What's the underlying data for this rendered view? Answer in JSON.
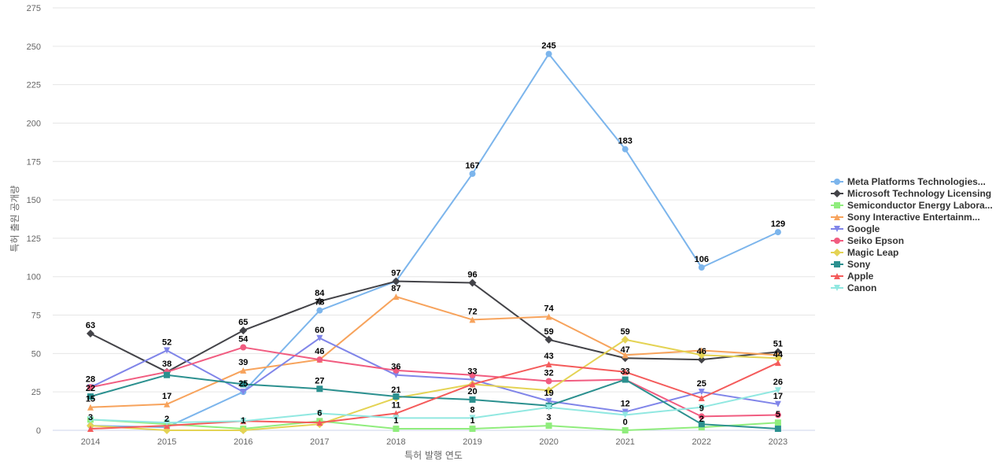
{
  "chart_data": {
    "type": "line",
    "xlabel": "특허 발행 연도",
    "ylabel": "특허 출원 공개량",
    "ylim": [
      0,
      275
    ],
    "yticks": [
      0,
      25,
      50,
      75,
      100,
      125,
      150,
      175,
      200,
      225,
      250,
      275
    ],
    "grid": true,
    "legend_position": "right",
    "categories": [
      "2014",
      "2015",
      "2016",
      "2017",
      "2018",
      "2019",
      "2020",
      "2021",
      "2022",
      "2023"
    ],
    "series": [
      {
        "name": "Meta Platforms Technologies...",
        "color": "#7cb5ec",
        "marker": "circle",
        "values": [
          3,
          2,
          25,
          78,
          97,
          167,
          245,
          183,
          106,
          129
        ]
      },
      {
        "name": "Microsoft Technology Licensing",
        "color": "#434348",
        "marker": "diamond",
        "values": [
          63,
          38,
          65,
          84,
          97,
          96,
          59,
          47,
          46,
          51
        ]
      },
      {
        "name": "Semiconductor Energy Labora...",
        "color": "#90ed7d",
        "marker": "square",
        "values": [
          7,
          4,
          1,
          6,
          1,
          1,
          3,
          0,
          2,
          5
        ]
      },
      {
        "name": "Sony Interactive Entertainm...",
        "color": "#f7a35c",
        "marker": "triangle",
        "values": [
          15,
          17,
          39,
          46,
          87,
          72,
          74,
          49,
          52,
          49
        ]
      },
      {
        "name": "Google",
        "color": "#8085e9",
        "marker": "triangle-down",
        "values": [
          28,
          52,
          25,
          60,
          36,
          33,
          19,
          12,
          25,
          17
        ]
      },
      {
        "name": "Seiko Epson",
        "color": "#f15c80",
        "marker": "circle",
        "values": [
          28,
          38,
          54,
          46,
          39,
          36,
          32,
          33,
          9,
          10
        ]
      },
      {
        "name": "Magic Leap",
        "color": "#e4d354",
        "marker": "diamond",
        "values": [
          3,
          0,
          0,
          4,
          21,
          30,
          26,
          59,
          49,
          47
        ]
      },
      {
        "name": "Sony",
        "color": "#2b908f",
        "marker": "square",
        "values": [
          22,
          36,
          30,
          27,
          22,
          20,
          16,
          33,
          4,
          1
        ]
      },
      {
        "name": "Apple",
        "color": "#f45b5b",
        "marker": "triangle",
        "values": [
          1,
          3,
          6,
          5,
          11,
          30,
          43,
          38,
          21,
          44
        ]
      },
      {
        "name": "Canon",
        "color": "#91e8e1",
        "marker": "triangle-down",
        "values": [
          7,
          5,
          6,
          11,
          8,
          8,
          15,
          10,
          15,
          26
        ]
      }
    ],
    "data_labels": [
      {
        "category": "2014",
        "value": 63,
        "text": "63"
      },
      {
        "category": "2014",
        "value": 28,
        "text": "28"
      },
      {
        "category": "2014",
        "value": 22,
        "text": "22"
      },
      {
        "category": "2014",
        "value": 15,
        "text": "15"
      },
      {
        "category": "2014",
        "value": 3,
        "text": "3"
      },
      {
        "category": "2015",
        "value": 52,
        "text": "52"
      },
      {
        "category": "2015",
        "value": 38,
        "text": "38"
      },
      {
        "category": "2015",
        "value": 17,
        "text": "17"
      },
      {
        "category": "2015",
        "value": 2,
        "text": "2"
      },
      {
        "category": "2016",
        "value": 65,
        "text": "65"
      },
      {
        "category": "2016",
        "value": 54,
        "text": "54"
      },
      {
        "category": "2016",
        "value": 39,
        "text": "39"
      },
      {
        "category": "2016",
        "value": 25,
        "text": "25"
      },
      {
        "category": "2016",
        "value": 1,
        "text": "1"
      },
      {
        "category": "2017",
        "value": 84,
        "text": "84"
      },
      {
        "category": "2017",
        "value": 78,
        "text": "78"
      },
      {
        "category": "2017",
        "value": 60,
        "text": "60"
      },
      {
        "category": "2017",
        "value": 46,
        "text": "46"
      },
      {
        "category": "2017",
        "value": 27,
        "text": "27"
      },
      {
        "category": "2017",
        "value": 6,
        "text": "6"
      },
      {
        "category": "2018",
        "value": 97,
        "text": "97"
      },
      {
        "category": "2018",
        "value": 87,
        "text": "87"
      },
      {
        "category": "2018",
        "value": 36,
        "text": "36"
      },
      {
        "category": "2018",
        "value": 21,
        "text": "21"
      },
      {
        "category": "2018",
        "value": 11,
        "text": "11"
      },
      {
        "category": "2018",
        "value": 1,
        "text": "1"
      },
      {
        "category": "2019",
        "value": 167,
        "text": "167"
      },
      {
        "category": "2019",
        "value": 96,
        "text": "96"
      },
      {
        "category": "2019",
        "value": 72,
        "text": "72"
      },
      {
        "category": "2019",
        "value": 33,
        "text": "33"
      },
      {
        "category": "2019",
        "value": 20,
        "text": "20"
      },
      {
        "category": "2019",
        "value": 8,
        "text": "8"
      },
      {
        "category": "2019",
        "value": 1,
        "text": "1"
      },
      {
        "category": "2020",
        "value": 245,
        "text": "245"
      },
      {
        "category": "2020",
        "value": 74,
        "text": "74"
      },
      {
        "category": "2020",
        "value": 59,
        "text": "59"
      },
      {
        "category": "2020",
        "value": 43,
        "text": "43"
      },
      {
        "category": "2020",
        "value": 32,
        "text": "32"
      },
      {
        "category": "2020",
        "value": 19,
        "text": "19"
      },
      {
        "category": "2020",
        "value": 3,
        "text": "3"
      },
      {
        "category": "2021",
        "value": 183,
        "text": "183"
      },
      {
        "category": "2021",
        "value": 59,
        "text": "59"
      },
      {
        "category": "2021",
        "value": 47,
        "text": "47"
      },
      {
        "category": "2021",
        "value": 33,
        "text": "33"
      },
      {
        "category": "2021",
        "value": 12,
        "text": "12"
      },
      {
        "category": "2021",
        "value": 0,
        "text": "0"
      },
      {
        "category": "2022",
        "value": 106,
        "text": "106"
      },
      {
        "category": "2022",
        "value": 46,
        "text": "46"
      },
      {
        "category": "2022",
        "value": 25,
        "text": "25"
      },
      {
        "category": "2022",
        "value": 9,
        "text": "9"
      },
      {
        "category": "2022",
        "value": 2,
        "text": "2"
      },
      {
        "category": "2023",
        "value": 129,
        "text": "129"
      },
      {
        "category": "2023",
        "value": 51,
        "text": "51"
      },
      {
        "category": "2023",
        "value": 44,
        "text": "44"
      },
      {
        "category": "2023",
        "value": 26,
        "text": "26"
      },
      {
        "category": "2023",
        "value": 17,
        "text": "17"
      },
      {
        "category": "2023",
        "value": 5,
        "text": "5"
      }
    ]
  }
}
